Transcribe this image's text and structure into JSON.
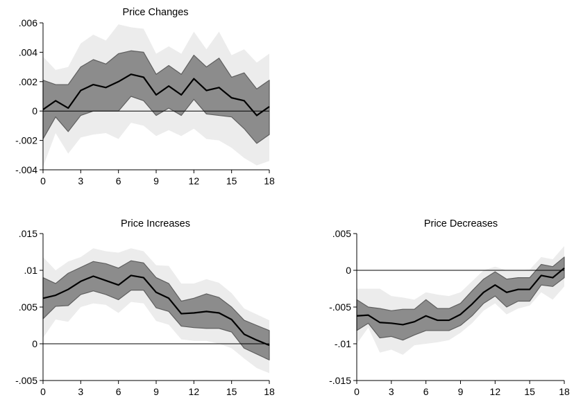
{
  "chart_data": [
    {
      "type": "line",
      "title": "Price Changes",
      "xlabel": "",
      "ylabel": "",
      "x": [
        0,
        1,
        2,
        3,
        4,
        5,
        6,
        7,
        8,
        9,
        10,
        11,
        12,
        13,
        14,
        15,
        16,
        17,
        18
      ],
      "xlim": [
        0,
        18
      ],
      "xticks": [
        0,
        3,
        6,
        9,
        12,
        15,
        18
      ],
      "xtick_labels": [
        "0",
        "3",
        "6",
        "9",
        "12",
        "15",
        "18"
      ],
      "ylim": [
        -0.004,
        0.006
      ],
      "yticks": [
        -0.004,
        -0.002,
        0,
        0.002,
        0.004,
        0.006
      ],
      "ytick_labels": [
        "-.004",
        "-.002",
        "0",
        ".002",
        ".004",
        ".006"
      ],
      "zero_line": true,
      "grid": false,
      "series": [
        {
          "role": "outer_band_upper",
          "values": [
            0.0037,
            0.0028,
            0.003,
            0.0046,
            0.0052,
            0.0048,
            0.0059,
            0.0057,
            0.0056,
            0.0039,
            0.0044,
            0.0039,
            0.0054,
            0.0042,
            0.0054,
            0.0038,
            0.0042,
            0.0033,
            0.0039
          ]
        },
        {
          "role": "outer_band_lower",
          "values": [
            -0.0038,
            -0.0015,
            -0.0029,
            -0.0018,
            -0.0016,
            -0.0015,
            -0.0019,
            -0.0008,
            -0.001,
            -0.0017,
            -0.0013,
            -0.0017,
            -0.0012,
            -0.0019,
            -0.002,
            -0.0025,
            -0.0032,
            -0.0037,
            -0.0034
          ]
        },
        {
          "role": "inner_band_upper",
          "values": [
            0.0021,
            0.0018,
            0.0018,
            0.003,
            0.0035,
            0.0032,
            0.0039,
            0.0041,
            0.004,
            0.0025,
            0.0031,
            0.0025,
            0.0038,
            0.003,
            0.0036,
            0.0023,
            0.0026,
            0.0015,
            0.0021
          ]
        },
        {
          "role": "inner_band_lower",
          "values": [
            -0.0019,
            -0.0004,
            -0.0014,
            -0.0003,
            0.0,
            0.0,
            0.0,
            0.001,
            0.0007,
            -0.0003,
            0.0002,
            -0.0003,
            0.0008,
            -0.0002,
            -0.0003,
            -0.0004,
            -0.0012,
            -0.0022,
            -0.0016
          ]
        },
        {
          "role": "estimate",
          "values": [
            0.0001,
            0.0007,
            0.0002,
            0.0014,
            0.0018,
            0.0016,
            0.002,
            0.0025,
            0.0023,
            0.0011,
            0.0017,
            0.0011,
            0.0022,
            0.0014,
            0.0016,
            0.0009,
            0.0007,
            -0.0003,
            0.0003
          ]
        }
      ]
    },
    {
      "type": "line",
      "title": "Price Increases",
      "xlabel": "",
      "ylabel": "",
      "x": [
        0,
        1,
        2,
        3,
        4,
        5,
        6,
        7,
        8,
        9,
        10,
        11,
        12,
        13,
        14,
        15,
        16,
        17,
        18
      ],
      "xlim": [
        0,
        18
      ],
      "xticks": [
        0,
        3,
        6,
        9,
        12,
        15,
        18
      ],
      "xtick_labels": [
        "0",
        "3",
        "6",
        "9",
        "12",
        "15",
        "18"
      ],
      "ylim": [
        -0.005,
        0.015
      ],
      "yticks": [
        -0.005,
        0,
        0.005,
        0.01,
        0.015
      ],
      "ytick_labels": [
        "-.005",
        "0",
        ".005",
        ".01",
        ".015"
      ],
      "zero_line": true,
      "grid": false,
      "series": [
        {
          "role": "outer_band_upper",
          "values": [
            0.0118,
            0.01,
            0.0112,
            0.0118,
            0.013,
            0.0126,
            0.0124,
            0.013,
            0.0126,
            0.0107,
            0.0106,
            0.0082,
            0.0082,
            0.0088,
            0.0083,
            0.0069,
            0.0048,
            0.004,
            0.0032
          ]
        },
        {
          "role": "outer_band_lower",
          "values": [
            0.0008,
            0.0033,
            0.003,
            0.005,
            0.0055,
            0.0053,
            0.0042,
            0.0057,
            0.0055,
            0.0031,
            0.0026,
            0.0006,
            0.0004,
            0.0004,
            0.0,
            -0.0006,
            -0.002,
            -0.0033,
            -0.004
          ]
        },
        {
          "role": "inner_band_upper",
          "values": [
            0.009,
            0.0082,
            0.0096,
            0.0104,
            0.0112,
            0.0109,
            0.0103,
            0.0113,
            0.011,
            0.009,
            0.0082,
            0.0058,
            0.0062,
            0.0068,
            0.0063,
            0.005,
            0.0032,
            0.0025,
            0.0018
          ]
        },
        {
          "role": "inner_band_lower",
          "values": [
            0.0034,
            0.0051,
            0.0052,
            0.0067,
            0.0072,
            0.0067,
            0.006,
            0.0073,
            0.0073,
            0.0049,
            0.0044,
            0.0024,
            0.0022,
            0.0021,
            0.0021,
            0.0016,
            -0.0006,
            -0.0014,
            -0.0022
          ]
        },
        {
          "role": "estimate",
          "values": [
            0.0062,
            0.0066,
            0.0074,
            0.0085,
            0.0092,
            0.0086,
            0.008,
            0.0093,
            0.009,
            0.007,
            0.0062,
            0.0041,
            0.0042,
            0.0044,
            0.0042,
            0.0033,
            0.0013,
            0.0005,
            -0.0002
          ]
        }
      ]
    },
    {
      "type": "line",
      "title": "Price Decreases",
      "xlabel": "",
      "ylabel": "",
      "x": [
        0,
        1,
        2,
        3,
        4,
        5,
        6,
        7,
        8,
        9,
        10,
        11,
        12,
        13,
        14,
        15,
        16,
        17,
        18
      ],
      "xlim": [
        0,
        18
      ],
      "xticks": [
        0,
        3,
        6,
        9,
        12,
        15,
        18
      ],
      "xtick_labels": [
        "0",
        "3",
        "6",
        "9",
        "12",
        "15",
        "18"
      ],
      "ylim": [
        -0.015,
        0.005
      ],
      "yticks": [
        -0.015,
        -0.01,
        -0.005,
        0,
        0.005
      ],
      "ytick_labels": [
        "-.015",
        "-.01",
        "-.005",
        "0",
        ".005"
      ],
      "zero_line": true,
      "grid": false,
      "series": [
        {
          "role": "outer_band_upper",
          "values": [
            -0.0025,
            -0.0025,
            -0.0025,
            -0.0035,
            -0.0037,
            -0.004,
            -0.003,
            -0.0033,
            -0.0035,
            -0.003,
            -0.0015,
            0.0,
            0.0005,
            0.0,
            0.0,
            0.0001,
            0.0018,
            0.0015,
            0.0033
          ]
        },
        {
          "role": "outer_band_lower",
          "values": [
            -0.01,
            -0.0078,
            -0.0112,
            -0.0108,
            -0.0115,
            -0.0102,
            -0.01,
            -0.0098,
            -0.0095,
            -0.0085,
            -0.0072,
            -0.0055,
            -0.0045,
            -0.006,
            -0.0052,
            -0.0048,
            -0.003,
            -0.004,
            -0.0022
          ]
        },
        {
          "role": "inner_band_upper",
          "values": [
            -0.004,
            -0.005,
            -0.0052,
            -0.0055,
            -0.0053,
            -0.0053,
            -0.004,
            -0.0052,
            -0.0052,
            -0.0045,
            -0.0028,
            -0.0012,
            -0.0002,
            -0.0012,
            -0.001,
            -0.001,
            0.0008,
            0.0005,
            0.0018
          ]
        },
        {
          "role": "inner_band_lower",
          "values": [
            -0.0082,
            -0.0072,
            -0.0092,
            -0.009,
            -0.0095,
            -0.0088,
            -0.0082,
            -0.0082,
            -0.0082,
            -0.0075,
            -0.0062,
            -0.0045,
            -0.0035,
            -0.005,
            -0.0042,
            -0.0042,
            -0.002,
            -0.0022,
            -0.001
          ]
        },
        {
          "role": "estimate",
          "values": [
            -0.0062,
            -0.0061,
            -0.0071,
            -0.0072,
            -0.0074,
            -0.007,
            -0.0062,
            -0.0068,
            -0.0068,
            -0.006,
            -0.0046,
            -0.003,
            -0.002,
            -0.003,
            -0.0026,
            -0.0026,
            -0.0007,
            -0.001,
            0.0003
          ]
        }
      ]
    }
  ],
  "colors": {
    "outer_band": "#ececec",
    "inner_band": "#8c8c8c",
    "inner_band_edge": "#5f5f5f",
    "estimate_line": "#000000",
    "axis": "#000000",
    "zero_line": "#000000"
  }
}
